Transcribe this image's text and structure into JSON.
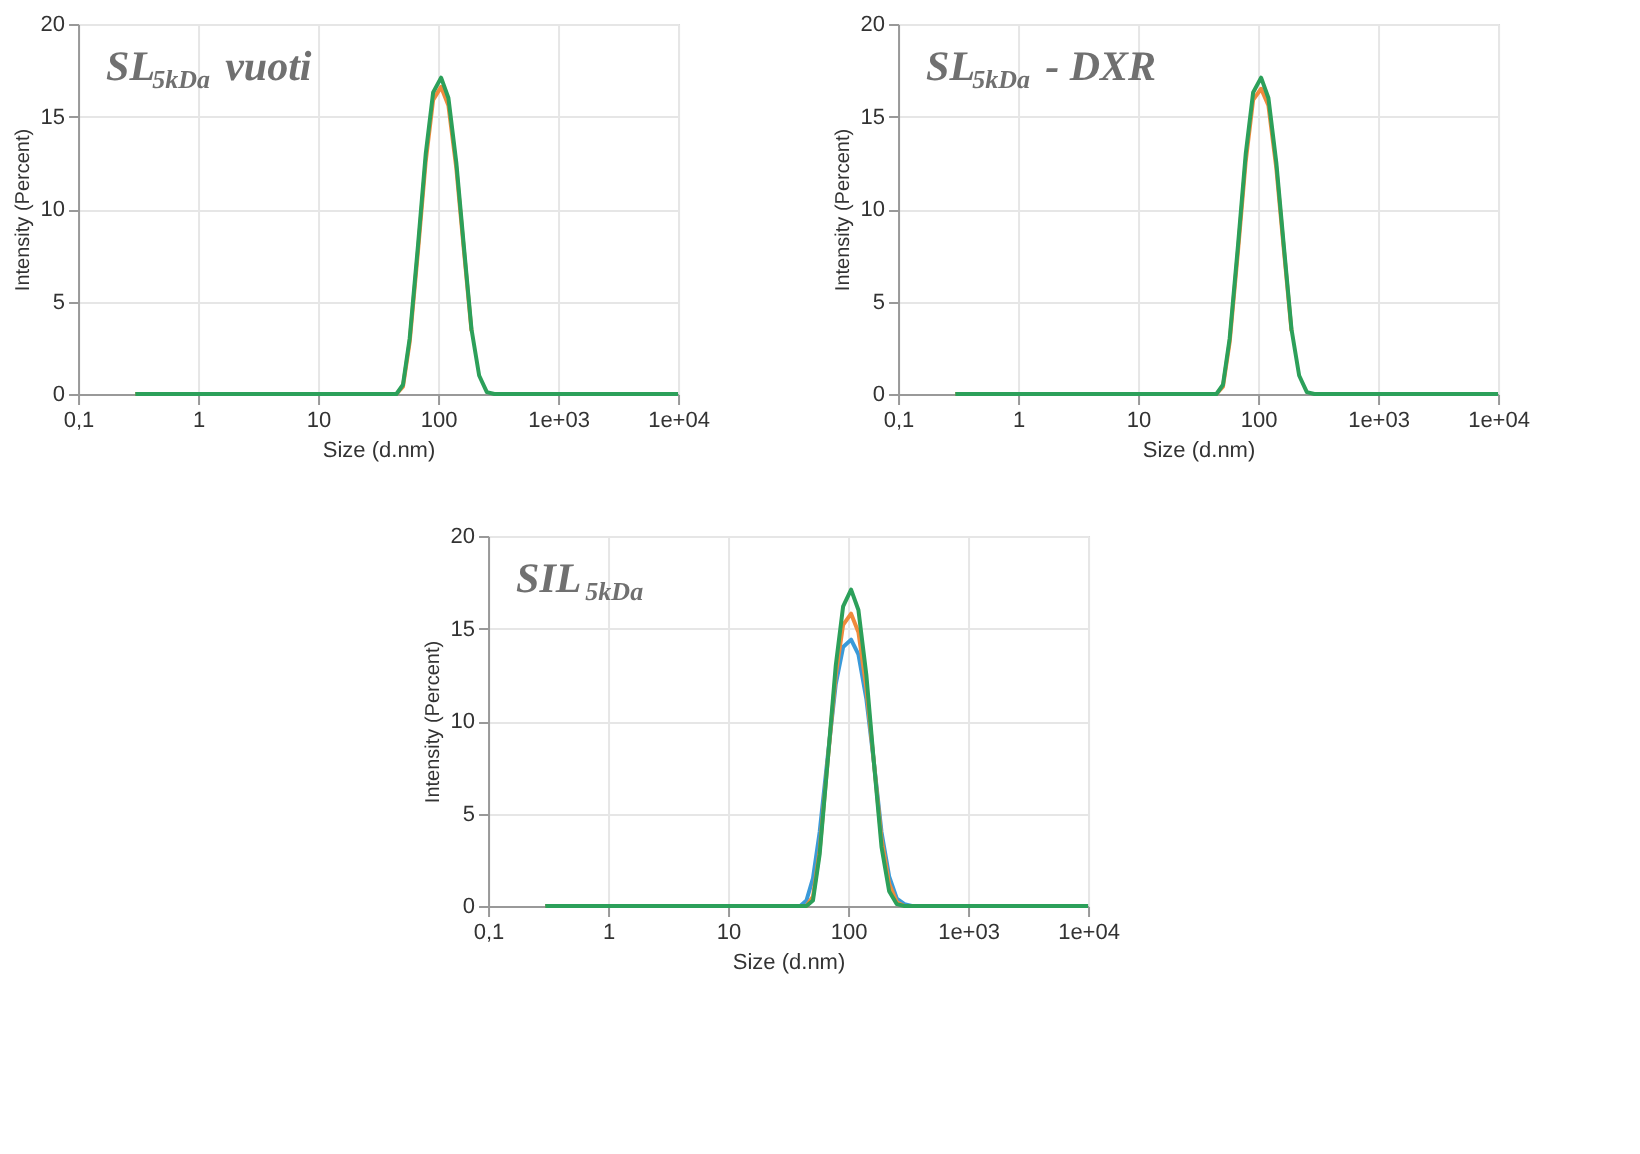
{
  "chart_data": [
    {
      "type": "line",
      "title": "SL$_{5kDa}$ vuoti",
      "xlabel": "Size (d.nm)",
      "ylabel": "Intensity (Percent)",
      "log": "x",
      "grid": true,
      "legend": false,
      "xlim": [
        0.1,
        10000
      ],
      "ylim": [
        0,
        20
      ],
      "xticks": [
        {
          "value": 0.1,
          "label": "0,1"
        },
        1,
        10,
        100,
        {
          "value": 1000,
          "label": "1e+03"
        },
        {
          "value": 10000,
          "label": "1e+04"
        }
      ],
      "yticks": [
        0,
        5,
        10,
        15,
        20
      ],
      "x": [
        0.3,
        40,
        45,
        51,
        58,
        68,
        79,
        91,
        106,
        122,
        142,
        164,
        190,
        220,
        255,
        295,
        340,
        10000
      ],
      "series": [
        {
          "color": "#f08a3c",
          "values": [
            0,
            0,
            0,
            0.4,
            2.8,
            7.7,
            12.6,
            15.9,
            16.6,
            15.6,
            12.2,
            7.8,
            3.4,
            null,
            null,
            null,
            null,
            null
          ]
        },
        {
          "color": "#2ca05a",
          "values": [
            0,
            0,
            0,
            0.5,
            3,
            8,
            13,
            16.3,
            17.1,
            16,
            12.5,
            8,
            3.5,
            1,
            0.1,
            0,
            0,
            0
          ]
        }
      ]
    },
    {
      "type": "line",
      "title": "SL$_{5kDa}$ - DXR",
      "xlabel": "Size (d.nm)",
      "ylabel": "Intensity (Percent)",
      "log": "x",
      "grid": true,
      "legend": false,
      "xlim": [
        0.1,
        10000
      ],
      "ylim": [
        0,
        20
      ],
      "xticks": [
        {
          "value": 0.1,
          "label": "0,1"
        },
        1,
        10,
        100,
        {
          "value": 1000,
          "label": "1e+03"
        },
        {
          "value": 10000,
          "label": "1e+04"
        }
      ],
      "yticks": [
        0,
        5,
        10,
        15,
        20
      ],
      "x": [
        0.3,
        40,
        45,
        51,
        58,
        68,
        79,
        91,
        106,
        122,
        142,
        164,
        190,
        220,
        255,
        295,
        340,
        10000
      ],
      "series": [
        {
          "color": "#f08a3c",
          "values": [
            0,
            0,
            0,
            0.4,
            2.8,
            7.7,
            12.6,
            15.9,
            16.5,
            15.6,
            12.2,
            7.8,
            3.4,
            null,
            null,
            null,
            null,
            null
          ]
        },
        {
          "color": "#2ca05a",
          "values": [
            0,
            0,
            0,
            0.5,
            3,
            8,
            13,
            16.3,
            17.1,
            16,
            12.5,
            8,
            3.5,
            1,
            0.1,
            0,
            0,
            0
          ]
        }
      ]
    },
    {
      "type": "line",
      "title": "SIL$_{5kDa}$",
      "xlabel": "Size (d.nm)",
      "ylabel": "Intensity (Percent)",
      "log": "x",
      "grid": true,
      "legend": false,
      "xlim": [
        0.1,
        10000
      ],
      "ylim": [
        0,
        20
      ],
      "xticks": [
        {
          "value": 0.1,
          "label": "0,1"
        },
        1,
        10,
        100,
        {
          "value": 1000,
          "label": "1e+03"
        },
        {
          "value": 10000,
          "label": "1e+04"
        }
      ],
      "yticks": [
        0,
        5,
        10,
        15,
        20
      ],
      "x": [
        0.3,
        40,
        45,
        51,
        58,
        68,
        79,
        91,
        106,
        122,
        142,
        164,
        190,
        220,
        255,
        295,
        340,
        10000
      ],
      "series": [
        {
          "color": "#3a9ad9",
          "values": [
            0,
            0,
            0.3,
            1.5,
            4,
            8.2,
            12,
            14,
            14.4,
            13.6,
            11.2,
            7.8,
            4,
            1.6,
            0.4,
            0.1,
            0,
            0
          ]
        },
        {
          "color": "#f08a3c",
          "values": [
            0,
            0,
            0,
            0.5,
            3,
            8,
            12.5,
            15.2,
            15.8,
            14.8,
            11.8,
            7.8,
            3.6,
            1.2,
            0.2,
            0,
            0,
            0
          ]
        },
        {
          "color": "#2ca05a",
          "values": [
            0,
            0,
            0,
            0.3,
            2.8,
            8,
            13,
            16.2,
            17.1,
            16,
            12.5,
            7.8,
            3.2,
            0.8,
            0.1,
            0,
            0,
            0
          ]
        }
      ]
    }
  ]
}
